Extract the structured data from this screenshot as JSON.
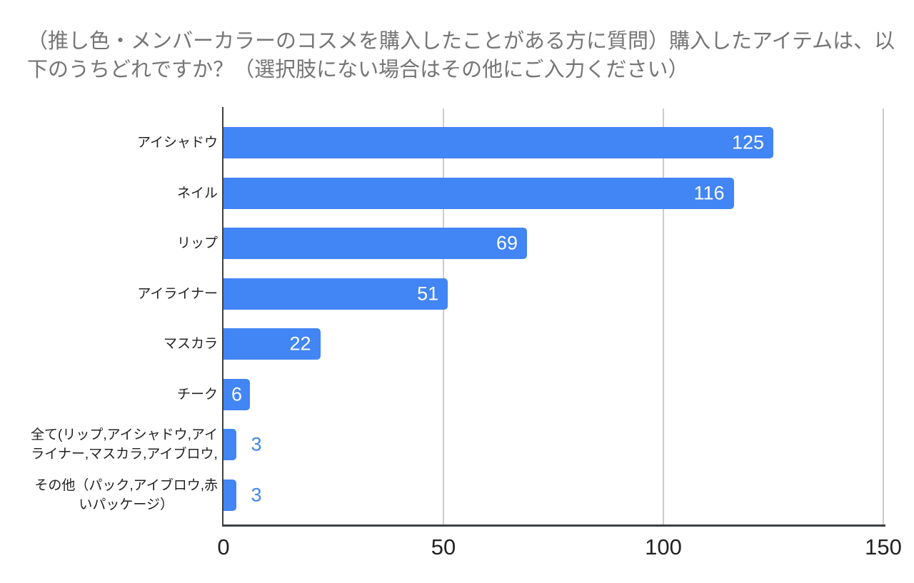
{
  "title": {
    "text": "（推し色・メンバーカラーのコスメを購入したことがある方に質問）購入したアイテムは、以\n下のうちどれですか？（選択肢にない場合はその他にご入力ください）"
  },
  "chart_data": {
    "type": "bar",
    "orientation": "horizontal",
    "title": "（推し色・メンバーカラーのコスメを購入したことがある方に質問）購入したアイテムは、以下のうちどれですか？（選択肢にない場合はその他にご入力ください）",
    "categories": [
      "アイシャドウ",
      "ネイル",
      "リップ",
      "アイライナー",
      "マスカラ",
      "チーク",
      "全て(リップ,アイシャドウ,アイ\nライナー,マスカラ,アイブロウ,",
      "その他（パック,アイブロウ,赤\nいパッケージ）"
    ],
    "values": [
      125,
      116,
      69,
      51,
      22,
      6,
      3,
      3
    ],
    "xlabel": "",
    "ylabel": "",
    "xlim": [
      0,
      150
    ],
    "xticks": [
      0,
      50,
      100,
      150
    ],
    "xtick_labels": [
      "0",
      "50",
      "100",
      "150"
    ],
    "grid": true,
    "legend": "none",
    "bar_color": "#4285f4",
    "annotation_color_inside": "#ffffff",
    "annotation_color_outside": "#4285f4"
  },
  "colors": {
    "background": "#ffffff",
    "title_text": "#757575",
    "category_label": "#212121",
    "tick_label": "#212121",
    "gridline": "#cccccc",
    "axis_line": "#3c4043"
  }
}
